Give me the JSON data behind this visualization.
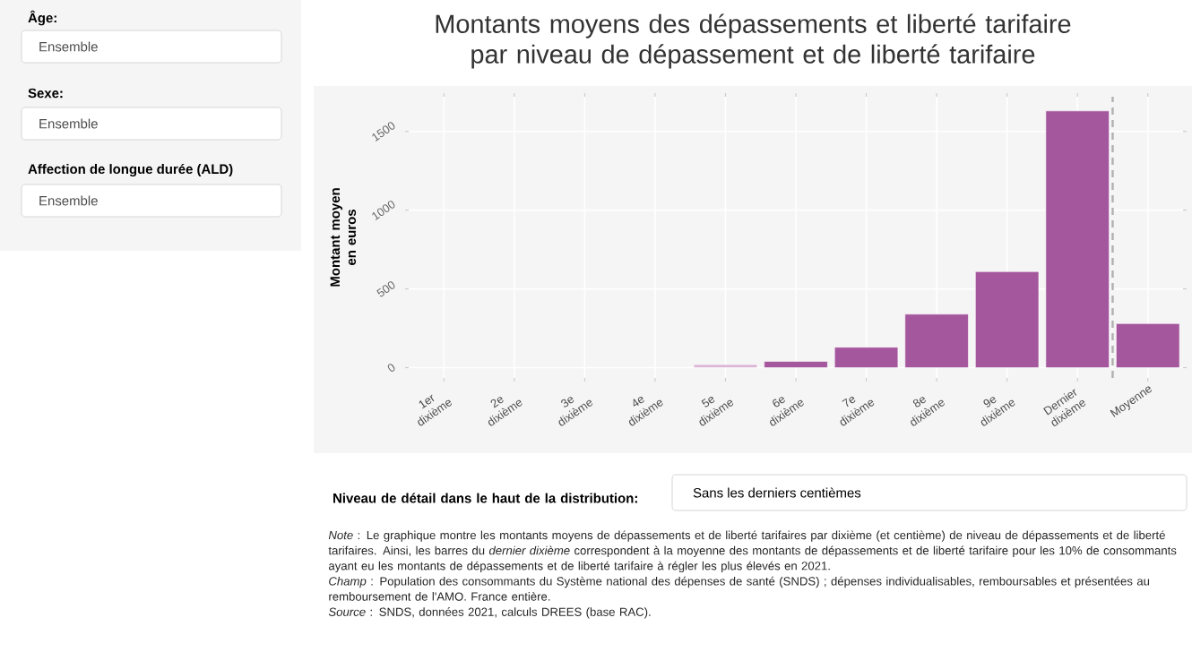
{
  "chart_data": {
    "type": "bar",
    "title": "Montants moyens des dépassements et liberté tarifaire par niveau de dépassement et de liberté tarifaire",
    "ylabel": "Montant moyen en euros",
    "categories": [
      "1er dixième",
      "2e dixième",
      "3e dixième",
      "4e dixième",
      "5e dixième",
      "6e dixième",
      "7e dixième",
      "8e dixième",
      "9e dixième",
      "Dernier dixième",
      "Moyenne"
    ],
    "values": [
      0,
      0,
      0,
      0,
      20,
      40,
      130,
      340,
      610,
      1630,
      280
    ],
    "colors": [
      "#a5579e",
      "#a5579e",
      "#a5579e",
      "#a5579e",
      "#dcb6d6",
      "#a5579e",
      "#a5579e",
      "#a5579e",
      "#a5579e",
      "#a5579e",
      "#a5579e"
    ],
    "ylim": [
      -65,
      1720
    ],
    "yticks": [
      0,
      500,
      1000,
      1500
    ],
    "grid": true,
    "ref_lines": [
      {
        "axis": "x",
        "value": "Dernier dixième",
        "color": "#b0b0b0",
        "line_style": "dashed"
      }
    ],
    "annotations": [
      "Âge:",
      "Ensemble",
      "Sexe:",
      "Ensemble",
      "Affection de longue durée (ALD)",
      "Ensemble",
      "Niveau de détail dans le haut de la distribution:",
      "Sans les derniers centièmes",
      "*Note* : Le graphique montre les montants moyens de dépassements et de liberté tarifaires par dixième (et centième) de niveau de dépassements et de liberté tarifaires. Ainsi, les barres du *dernier dixième* correspondent à la moyenne des montants de dépassements et de liberté tarifaire pour les 10% de consommants ayant eu les montants de dépassements et de liberté tarifaire à régler les plus élevés en 2021.",
      "*Champ* : Population des consommants du Système national des dépenses de santé (SNDS) ; dépenses individualisables, remboursables et présentées au remboursement de l'AMO. France entière.",
      "*Source* : SNDS, données 2021, calculs DREES (base RAC)."
    ]
  }
}
